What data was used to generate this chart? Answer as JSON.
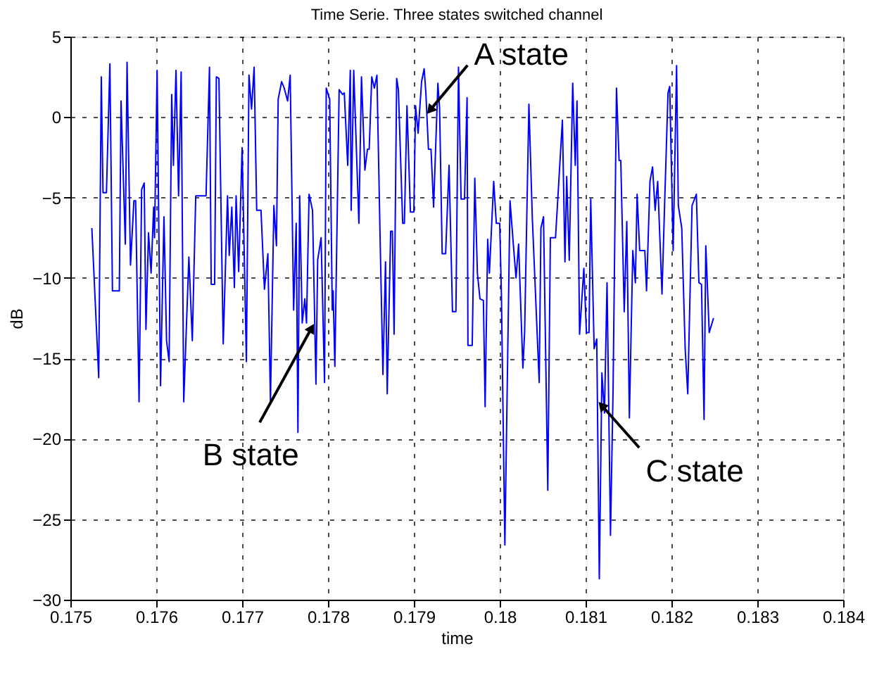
{
  "chart_data": {
    "type": "line",
    "title": "Time Serie. Three states switched channel",
    "xlabel": "time",
    "ylabel": "dB",
    "x": [
      0.17525,
      0.17533,
      0.17536,
      0.17538,
      0.17542,
      0.17546,
      0.17549,
      0.17557,
      0.17559,
      0.17564,
      0.17566,
      0.1757,
      0.17574,
      0.17576,
      0.1758,
      0.17583,
      0.17586,
      0.17588,
      0.17591,
      0.17594,
      0.17597,
      0.17598,
      0.17601,
      0.17605,
      0.17609,
      0.17612,
      0.17615,
      0.17618,
      0.1762,
      0.17623,
      0.17626,
      0.17629,
      0.17632,
      0.17638,
      0.17642,
      0.17646,
      0.17651,
      0.17658,
      0.17662,
      0.17664,
      0.17668,
      0.1767,
      0.17673,
      0.17678,
      0.17683,
      0.17685,
      0.17688,
      0.17691,
      0.17693,
      0.17696,
      0.177,
      0.17705,
      0.17708,
      0.17711,
      0.17714,
      0.17717,
      0.17722,
      0.17726,
      0.1773,
      0.17733,
      0.17737,
      0.1774,
      0.17742,
      0.17746,
      0.17749,
      0.17753,
      0.17756,
      0.1776,
      0.17763,
      0.17765,
      0.17767,
      0.1777,
      0.17773,
      0.17775,
      0.17778,
      0.17782,
      0.17786,
      0.17788,
      0.17792,
      0.17796,
      0.17798,
      0.17802,
      0.17805,
      0.17806,
      0.17808,
      0.17813,
      0.17817,
      0.17819,
      0.17823,
      0.17826,
      0.17827,
      0.1783,
      0.17836,
      0.17839,
      0.17843,
      0.17846,
      0.17848,
      0.17851,
      0.17854,
      0.17857,
      0.17861,
      0.17864,
      0.17867,
      0.17869,
      0.17873,
      0.17875,
      0.17877,
      0.1788,
      0.17882,
      0.17887,
      0.17889,
      0.17892,
      0.17896,
      0.179,
      0.17902,
      0.17905,
      0.17909,
      0.17912,
      0.17914,
      0.17917,
      0.1792,
      0.17923,
      0.17928,
      0.1793,
      0.17933,
      0.17937,
      0.17941,
      0.17945,
      0.17949,
      0.17952,
      0.17955,
      0.17959,
      0.17962,
      0.17963,
      0.17968,
      0.17971,
      0.17974,
      0.17977,
      0.17981,
      0.17983,
      0.17986,
      0.17988,
      0.17993,
      0.17996,
      0.18,
      0.18002,
      0.18006,
      0.18012,
      0.18016,
      0.18019,
      0.18022,
      0.18027,
      0.18029,
      0.18034,
      0.18038,
      0.18046,
      0.18048,
      0.18051,
      0.18056,
      0.18059,
      0.18065,
      0.18073,
      0.18076,
      0.18078,
      0.18081,
      0.18085,
      0.18088,
      0.1809,
      0.18093,
      0.18098,
      0.18101,
      0.18104,
      0.18106,
      0.1811,
      0.18113,
      0.18116,
      0.18119,
      0.18122,
      0.18125,
      0.18129,
      0.18132,
      0.18136,
      0.18139,
      0.18141,
      0.18145,
      0.18148,
      0.18151,
      0.18155,
      0.18158,
      0.1816,
      0.18163,
      0.18169,
      0.18171,
      0.18175,
      0.18178,
      0.18181,
      0.18184,
      0.18189,
      0.18192,
      0.18196,
      0.18198,
      0.18202,
      0.18206,
      0.18208,
      0.18212,
      0.18216,
      0.18219,
      0.18224,
      0.18229,
      0.18232,
      0.18235,
      0.18238,
      0.1824,
      0.18244,
      0.18249
    ],
    "series": [
      {
        "color": "#0000ff",
        "values": [
          -6.9,
          -16.2,
          2.5,
          -4.7,
          -4.7,
          3.3,
          -10.8,
          -10.8,
          1.0,
          -7.9,
          3.4,
          -9.2,
          -5.2,
          -5.2,
          -17.7,
          -4.5,
          -4.1,
          -13.2,
          -7.2,
          -9.7,
          -5.6,
          -7.5,
          2.9,
          -16.7,
          -6.2,
          -13.9,
          -15.2,
          1.4,
          -3.0,
          2.9,
          -4.9,
          2.8,
          -17.7,
          -8.7,
          -13.9,
          -4.9,
          -4.9,
          -4.9,
          3.1,
          -10.4,
          -10.4,
          2.5,
          2.4,
          -14.1,
          -4.9,
          -8.6,
          -5.6,
          -10.6,
          -4.9,
          -9.6,
          -1.9,
          -15.2,
          2.6,
          0.5,
          3.1,
          -5.8,
          -5.8,
          -10.7,
          -8.5,
          -17.7,
          -5.5,
          -8.0,
          1.1,
          2.2,
          1.8,
          1.0,
          2.6,
          -12.0,
          -6.6,
          -19.6,
          -4.9,
          -12.8,
          -11.3,
          -12.8,
          -4.8,
          -5.8,
          -16.6,
          -8.9,
          -7.5,
          -16.5,
          1.8,
          1.1,
          -12.0,
          -10.8,
          -15.5,
          1.7,
          1.4,
          1.5,
          -3.0,
          2.9,
          -5.8,
          2.9,
          -6.6,
          2.5,
          -3.3,
          -2.0,
          -2.0,
          2.5,
          1.8,
          2.6,
          -8.3,
          -16.0,
          -9.0,
          -17.2,
          -7.1,
          -7.1,
          -13.5,
          2.4,
          1.7,
          -6.6,
          -6.6,
          0.7,
          -5.9,
          -5.9,
          0.7,
          -1.0,
          2.2,
          3.0,
          1.5,
          -2.0,
          -2.0,
          -5.6,
          2.1,
          0.5,
          -8.5,
          -8.5,
          -3.0,
          -12.1,
          -12.1,
          3.1,
          -5.1,
          -5.1,
          1.2,
          -14.2,
          -14.2,
          -3.8,
          -9.7,
          -11.3,
          -11.4,
          -18.0,
          -7.6,
          -9.7,
          -4.0,
          -6.6,
          -6.6,
          -11.1,
          -26.6,
          -5.2,
          -8.0,
          -10.0,
          -7.9,
          -15.6,
          -13.4,
          0.8,
          -6.3,
          -16.5,
          -6.9,
          -6.2,
          -23.2,
          -7.5,
          -7.5,
          -0.2,
          -9.0,
          -3.7,
          -8.9,
          2.1,
          -3.0,
          1.0,
          -13.5,
          -9.4,
          -13.4,
          -13.4,
          -5.1,
          -14.4,
          -13.8,
          -28.7,
          -15.9,
          -18.4,
          -10.3,
          -26.0,
          -17.0,
          1.8,
          -2.7,
          -2.7,
          -12.1,
          -6.5,
          -18.7,
          -8.3,
          -10.3,
          -4.8,
          -8.3,
          -8.3,
          -10.8,
          -4.0,
          -3.1,
          -5.8,
          -4.0,
          -11.0,
          -5.5,
          1.5,
          1.9,
          -8.3,
          3.2,
          -5.5,
          -6.9,
          -14.4,
          -17.2,
          -5.5,
          -4.8,
          -10.3,
          -10.4,
          -18.8,
          -8.0,
          -13.4,
          -12.5
        ]
      }
    ],
    "xlim": [
      0.175,
      0.184
    ],
    "xticks": [
      0.175,
      0.176,
      0.177,
      0.178,
      0.179,
      0.18,
      0.181,
      0.182,
      0.183,
      0.184
    ],
    "ylim": [
      -30,
      5
    ],
    "yticks": [
      -30,
      -25,
      -20,
      -15,
      -10,
      -5,
      0,
      5
    ],
    "grid": true,
    "marker": "none",
    "line_style": "solid",
    "annotations": [
      {
        "text": "A state",
        "x": 0.1792,
        "y": 0.5
      },
      {
        "text": "B state",
        "x": 0.1778,
        "y": -13.2
      },
      {
        "text": "C state",
        "x": 0.1812,
        "y": -18.0
      }
    ]
  }
}
